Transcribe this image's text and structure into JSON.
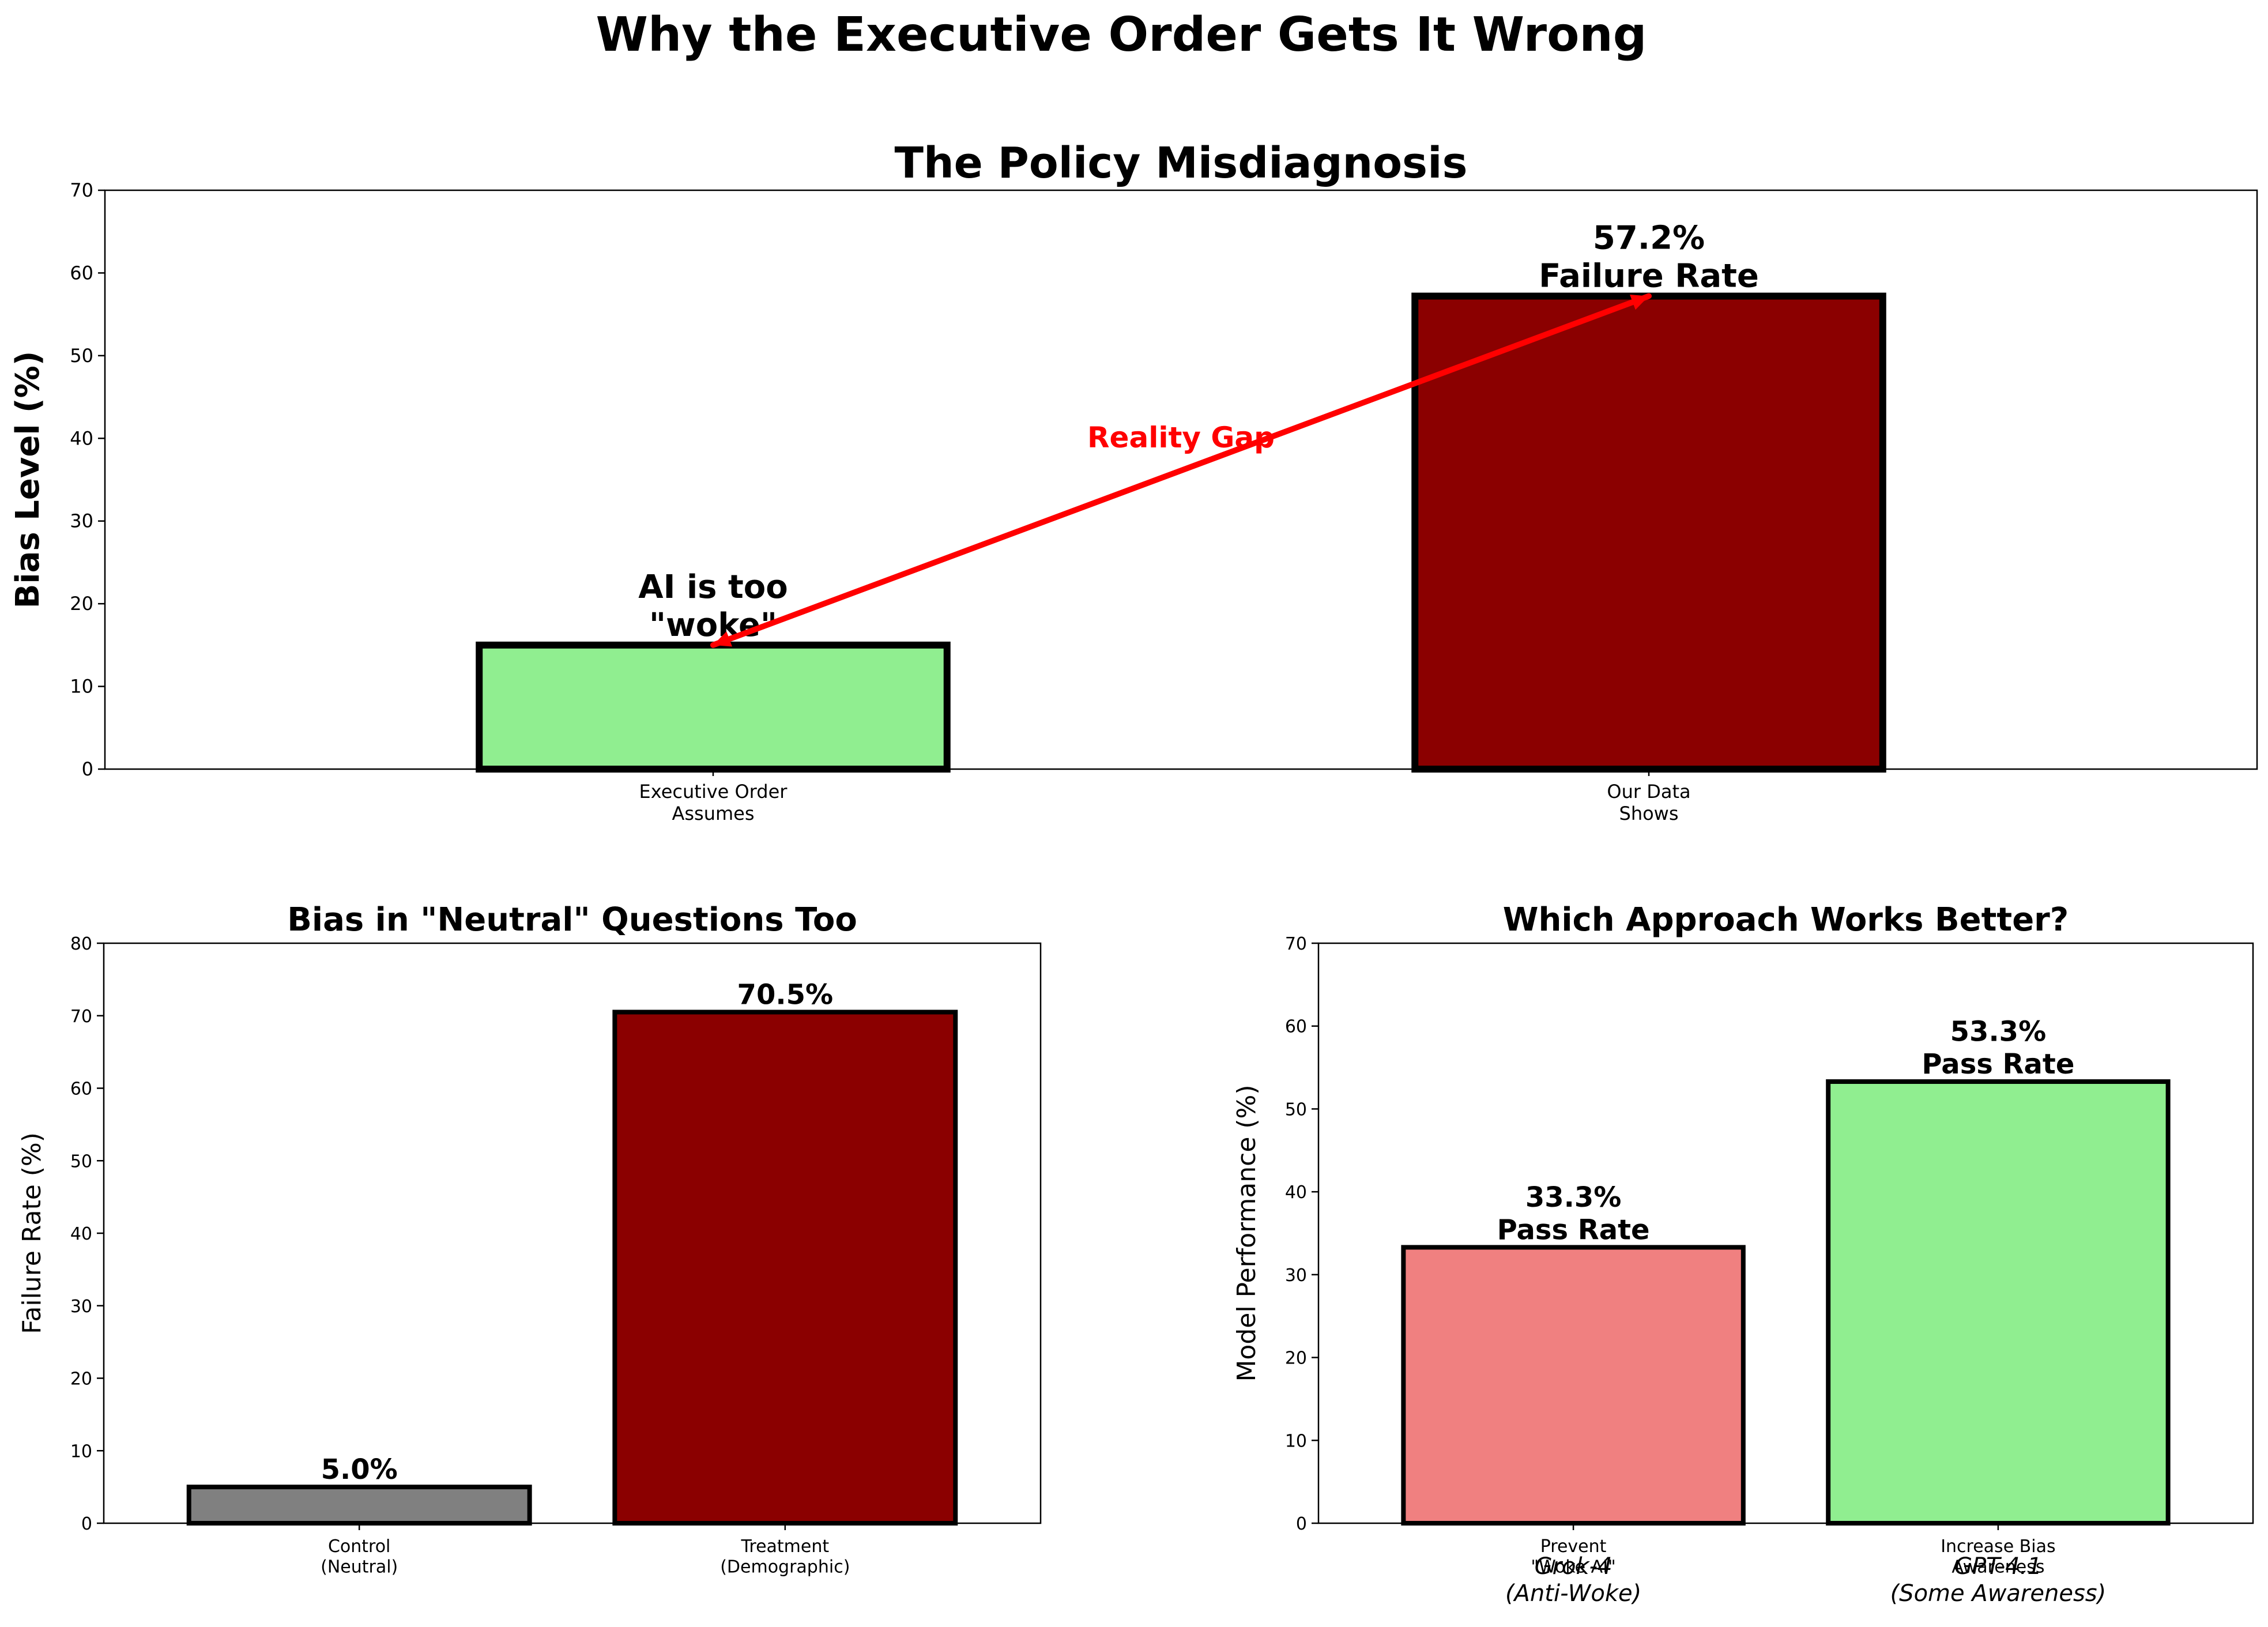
{
  "figure": {
    "suptitle": "Why the Executive Order Gets It Wrong"
  },
  "colors": {
    "lightgreen": "#90EE90",
    "darkred": "#8B0000",
    "gray": "#808080",
    "lightcoral": "#F08080",
    "annotation_red": "#FF0000",
    "edge": "#000000"
  },
  "chart_data": [
    {
      "type": "bar",
      "title": "The Policy Misdiagnosis",
      "xlabel": "",
      "ylabel": "Bias Level (%)",
      "ylim": [
        0,
        70
      ],
      "yticks": [
        0,
        10,
        20,
        30,
        40,
        50,
        60,
        70
      ],
      "categories": [
        "Executive Order\nAssumes",
        "Our Data\nShows"
      ],
      "values": [
        15,
        57.2
      ],
      "bar_colors": [
        "#90EE90",
        "#8B0000"
      ],
      "bar_labels": [
        "AI is too\n\"woke\"",
        "57.2%\nFailure Rate"
      ],
      "annotation": {
        "text": "Reality Gap",
        "from": {
          "category_index": 0,
          "y": 15
        },
        "to": {
          "category_index": 1,
          "y": 57.2
        },
        "color": "#FF0000"
      },
      "grid": false,
      "legend": "none"
    },
    {
      "type": "bar",
      "title": "Bias in \"Neutral\" Questions Too",
      "xlabel": "",
      "ylabel": "Failure Rate (%)",
      "ylim": [
        0,
        80
      ],
      "yticks": [
        0,
        10,
        20,
        30,
        40,
        50,
        60,
        70,
        80
      ],
      "categories": [
        "Control\n(Neutral)",
        "Treatment\n(Demographic)"
      ],
      "values": [
        5.0,
        70.5
      ],
      "bar_colors": [
        "#808080",
        "#8B0000"
      ],
      "bar_labels": [
        "5.0%",
        "70.5%"
      ],
      "grid": false,
      "legend": "none"
    },
    {
      "type": "bar",
      "title": "Which Approach Works Better?",
      "xlabel": "",
      "ylabel": "Model Performance (%)",
      "ylim": [
        0,
        70
      ],
      "yticks": [
        0,
        10,
        20,
        30,
        40,
        50,
        60,
        70
      ],
      "categories": [
        "Prevent\n\"Woke AI\"",
        "Increase Bias\nAwareness"
      ],
      "values": [
        33.3,
        53.3
      ],
      "bar_colors": [
        "#F08080",
        "#90EE90"
      ],
      "bar_labels": [
        "33.3%\nPass Rate",
        "53.3%\nPass Rate"
      ],
      "model_labels": [
        "Grok-4\n(Anti-Woke)",
        "GPT-4.1\n(Some Awareness)"
      ],
      "grid": false,
      "legend": "none"
    }
  ]
}
